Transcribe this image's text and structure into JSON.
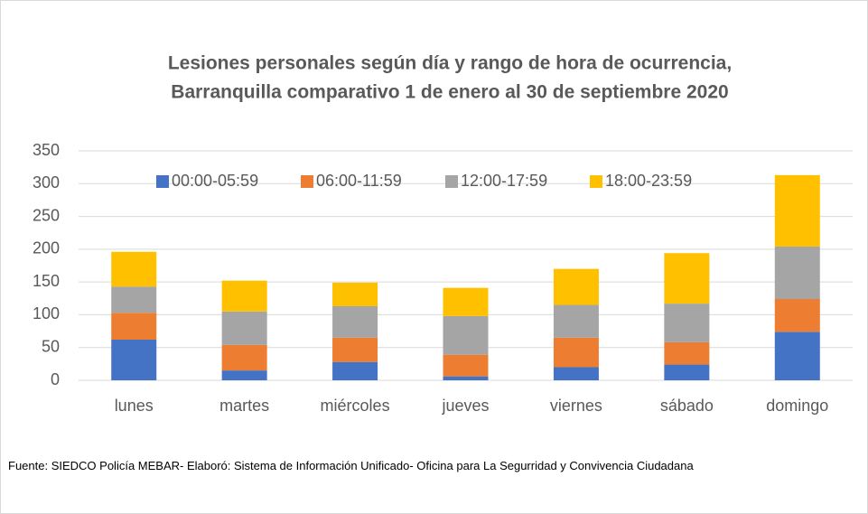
{
  "chart_data": {
    "type": "stacked_bar",
    "title": [
      "Lesiones personales según día y rango de hora de ocurrencia,",
      "Barranquilla comparativo 1 de enero al 30 de septiembre 2020"
    ],
    "categories": [
      "lunes",
      "martes",
      "miércoles",
      "jueves",
      "viernes",
      "sábado",
      "domingo"
    ],
    "series": [
      {
        "name": "00:00-05:59",
        "color": "#4472c4",
        "values": [
          62,
          15,
          28,
          6,
          20,
          24,
          74
        ]
      },
      {
        "name": "06:00-11:59",
        "color": "#ed7d31",
        "values": [
          41,
          39,
          37,
          33,
          45,
          34,
          50
        ]
      },
      {
        "name": "12:00-17:59",
        "color": "#a5a5a5",
        "values": [
          40,
          51,
          48,
          59,
          50,
          59,
          80
        ]
      },
      {
        "name": "18:00-23:59",
        "color": "#ffc000",
        "values": [
          53,
          47,
          36,
          43,
          55,
          77,
          109
        ]
      }
    ],
    "ylim": [
      0,
      350
    ],
    "yticks": [
      0,
      50,
      100,
      150,
      200,
      250,
      300,
      350
    ],
    "grid": true,
    "legend": "top",
    "source": "Fuente:  SIEDCO Policía MEBAR- Elaboró: Sistema de Información Unificado- Oficina para La Segurridad y Convivencia Ciudadana"
  }
}
